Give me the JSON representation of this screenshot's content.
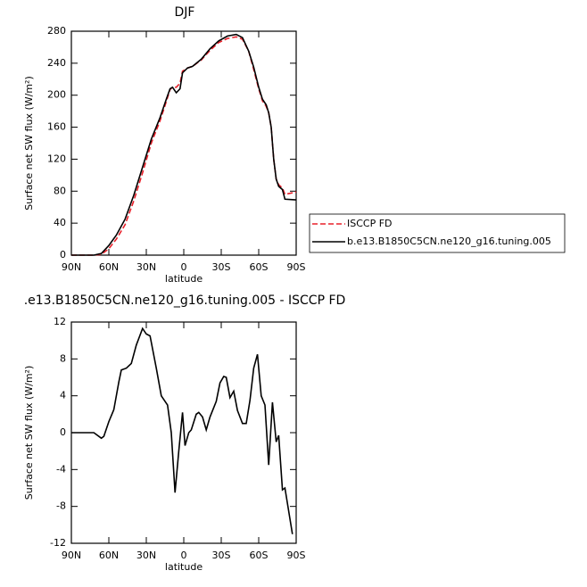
{
  "chart_data": [
    {
      "type": "line",
      "title": "DJF",
      "xlabel": "latitude",
      "ylabel": "Surface net SW flux (W/m²)",
      "x": [
        90,
        72,
        66,
        60,
        54,
        47,
        40,
        33,
        26,
        19,
        14,
        11,
        9,
        6,
        3,
        1,
        -3,
        -7,
        -14,
        -21,
        -28,
        -35,
        -42,
        -47,
        -52,
        -56,
        -60,
        -63,
        -66,
        -68,
        -70,
        -72,
        -74,
        -76,
        -79,
        -81,
        -90
      ],
      "series": [
        {
          "name": "ISCCP FD",
          "color": "#e8202a",
          "dashed": true,
          "values": [
            0,
            0,
            1,
            8,
            20,
            38,
            68,
            103,
            140,
            168,
            192,
            207,
            210,
            210,
            215,
            230,
            234,
            236,
            244,
            256,
            266,
            271,
            273,
            270,
            255,
            232,
            208,
            193,
            186,
            178,
            160,
            120,
            95,
            88,
            84,
            76,
            79
          ]
        },
        {
          "name": "b.e13.B1850C5CN.ne120_g16.tuning.005",
          "color": "#000000",
          "dashed": false,
          "values": [
            0,
            0,
            2,
            12,
            25,
            45,
            75,
            110,
            145,
            172,
            195,
            208,
            210,
            203,
            208,
            228,
            234,
            236,
            245,
            258,
            268,
            274,
            276,
            272,
            255,
            235,
            210,
            195,
            188,
            178,
            160,
            120,
            95,
            86,
            82,
            70,
            69
          ]
        }
      ],
      "xlim": [
        90,
        -90
      ],
      "xticks": [
        {
          "value": 90,
          "label": "90N"
        },
        {
          "value": 60,
          "label": "60N"
        },
        {
          "value": 30,
          "label": "30N"
        },
        0,
        {
          "value": -30,
          "label": "30S"
        },
        {
          "value": -60,
          "label": "60S"
        },
        {
          "value": -90,
          "label": "90S"
        }
      ],
      "ylim": [
        0,
        280
      ],
      "yticks": [
        0,
        40,
        80,
        120,
        160,
        200,
        240,
        280
      ]
    },
    {
      "type": "line",
      "title": ".e13.B1850C5CN.ne120_g16.tuning.005 - ISCCP FD",
      "xlabel": "latitude",
      "ylabel": "Surface net SW flux (W/m²)",
      "x": [
        90,
        87,
        72,
        66,
        64,
        60,
        56,
        52,
        50,
        46,
        42,
        38,
        33,
        30,
        27,
        22,
        18,
        13,
        10,
        7,
        4,
        1,
        -1,
        -4,
        -6,
        -10,
        -12,
        -15,
        -18,
        -21,
        -26,
        -29,
        -32,
        -34,
        -37,
        -40,
        -43,
        -47,
        -50,
        -53,
        -56,
        -59,
        -62,
        -65,
        -68,
        -71,
        -74,
        -76,
        -79,
        -81,
        -87
      ],
      "series": [
        {
          "color": "#000000",
          "dashed": false,
          "values": [
            0,
            0,
            0,
            -0.6,
            -0.4,
            1.2,
            2.5,
            5.5,
            6.8,
            7,
            7.5,
            9.5,
            11.3,
            10.7,
            10.5,
            7,
            4,
            3,
            0,
            -6.5,
            -2,
            2.2,
            -1.4,
            0,
            0.3,
            2,
            2.2,
            1.7,
            0.3,
            1.7,
            3.4,
            5.4,
            6.1,
            6,
            3.8,
            4.5,
            2.4,
            1,
            1,
            3.5,
            7,
            8.5,
            4,
            3,
            -3.5,
            3.3,
            -1,
            -0.3,
            -6.2,
            -6,
            -11
          ]
        }
      ],
      "xlim": [
        90,
        -90
      ],
      "xticks": [
        {
          "value": 90,
          "label": "90N"
        },
        {
          "value": 60,
          "label": "60N"
        },
        {
          "value": 30,
          "label": "30N"
        },
        0,
        {
          "value": -30,
          "label": "30S"
        },
        {
          "value": -60,
          "label": "60S"
        },
        {
          "value": -90,
          "label": "90S"
        }
      ],
      "ylim": [
        -12,
        12
      ],
      "yticks": [
        -12,
        -8,
        -4,
        0,
        4,
        8,
        12
      ]
    }
  ]
}
